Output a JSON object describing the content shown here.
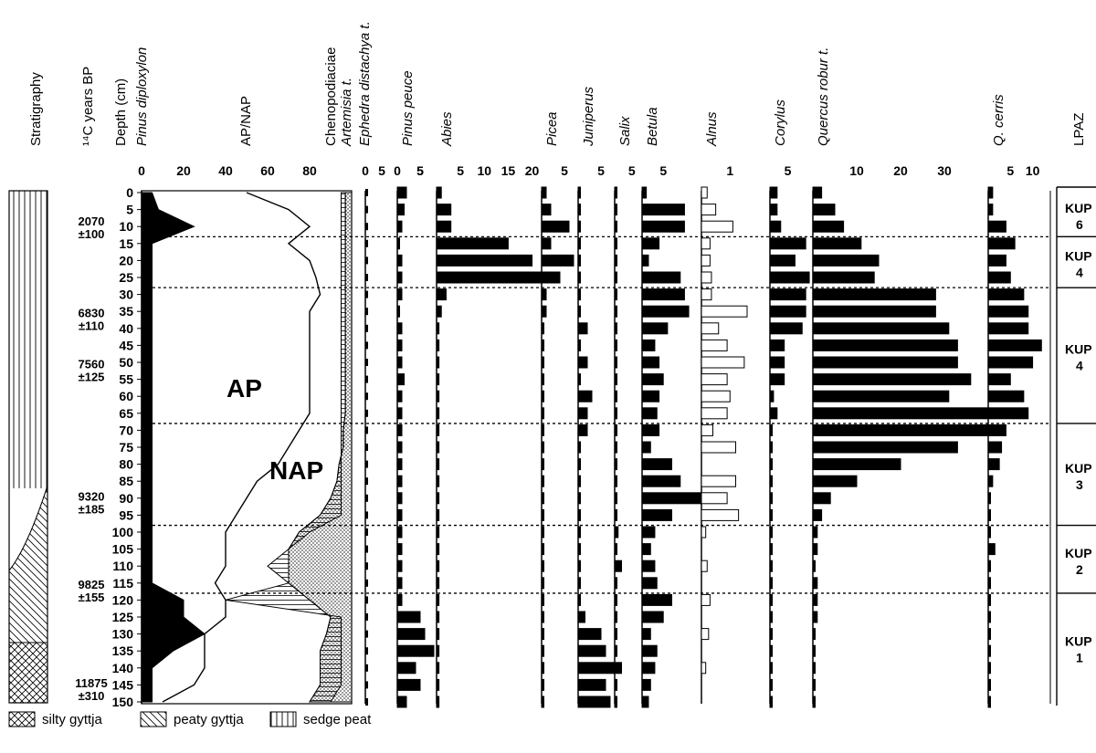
{
  "chart_data": {
    "type": "bar",
    "title": "",
    "headers": {
      "stratigraphy": "Stratigraphy",
      "c14": "¹⁴C years BP",
      "depth": "Depth (cm)",
      "pinus_diploxylon": "Pinus diploxylon",
      "ap_nap": "AP/NAP",
      "chenopodiaciae": "Chenopodiaciae",
      "artemisia": "Artemisia t.",
      "ephedra": "Ephedra distachya t.",
      "lpaz": "LPAZ"
    },
    "depths": [
      0,
      5,
      10,
      15,
      20,
      25,
      30,
      35,
      40,
      45,
      50,
      55,
      60,
      65,
      70,
      75,
      80,
      85,
      90,
      95,
      100,
      105,
      110,
      115,
      120,
      125,
      130,
      135,
      140,
      145,
      150
    ],
    "c14_dates": [
      {
        "age": "2070",
        "err": "±100",
        "depth": 10
      },
      {
        "age": "6830",
        "err": "±110",
        "depth": 37
      },
      {
        "age": "7560",
        "err": "±125",
        "depth": 52
      },
      {
        "age": "9320",
        "err": "±185",
        "depth": 91
      },
      {
        "age": "9825",
        "err": "±155",
        "depth": 117
      },
      {
        "age": "11875",
        "err": "±310",
        "depth": 146
      }
    ],
    "ap_nap_axis": {
      "ticks": [
        "0",
        "20",
        "40",
        "60",
        "80"
      ],
      "max": 100
    },
    "pinus_diploxylon": [
      5,
      8,
      25,
      5,
      5,
      5,
      5,
      5,
      5,
      5,
      5,
      5,
      5,
      5,
      5,
      5,
      5,
      5,
      5,
      5,
      5,
      5,
      5,
      5,
      20,
      20,
      30,
      15,
      5,
      5,
      5
    ],
    "ap_line": [
      50,
      70,
      80,
      70,
      80,
      83,
      85,
      80,
      80,
      80,
      80,
      80,
      80,
      80,
      75,
      70,
      65,
      55,
      50,
      45,
      40,
      40,
      40,
      35,
      40,
      40,
      30,
      30,
      30,
      25,
      10
    ],
    "chenopod_line": [
      95,
      95,
      95,
      95,
      95,
      95,
      95,
      95,
      95,
      95,
      95,
      95,
      95,
      95,
      95,
      95,
      95,
      95,
      95,
      95,
      80,
      70,
      60,
      70,
      40,
      95,
      95,
      95,
      95,
      95,
      90
    ],
    "artemisia_line": [
      97,
      97,
      97,
      97,
      97,
      97,
      97,
      97,
      97,
      97,
      97,
      97,
      97,
      97,
      96,
      96,
      94,
      93,
      90,
      85,
      75,
      70,
      70,
      70,
      80,
      90,
      88,
      85,
      85,
      85,
      80
    ],
    "ap_label": "AP",
    "nap_label": "NAP",
    "taxa": [
      {
        "name": "Pinus peuce",
        "ticks": [
          "0",
          "5",
          "5"
        ],
        "max": 8,
        "fill": "black",
        "values": [
          2,
          1.5,
          1,
          0.5,
          1,
          1,
          1,
          0.5,
          1,
          1,
          1,
          1.5,
          1,
          1,
          1,
          1,
          1,
          1,
          1,
          1,
          1,
          1,
          1,
          1,
          1,
          5,
          6,
          8,
          4,
          5,
          2
        ]
      },
      {
        "name": "Abies",
        "ticks": [
          "5",
          "10",
          "15",
          "20"
        ],
        "max": 22,
        "fill": "black",
        "values": [
          1,
          3,
          3,
          15,
          20,
          22,
          2,
          1,
          0.5,
          0.5,
          0.5,
          0.5,
          0.5,
          0.5,
          0.5,
          0.5,
          0.5,
          0.5,
          0.5,
          0.5,
          0.5,
          0.5,
          0.5,
          0.5,
          0.5,
          0.5,
          0.5,
          0.5,
          0.5,
          0.5,
          0.5
        ]
      },
      {
        "name": "Picea",
        "ticks": [
          "5"
        ],
        "max": 8,
        "fill": "black",
        "values": [
          1,
          2,
          6,
          2,
          7,
          4,
          1,
          1,
          0.5,
          0.5,
          0.5,
          0.5,
          0.5,
          0.5,
          0.5,
          0.5,
          0.5,
          0.5,
          0.5,
          0.5,
          0.5,
          0.5,
          0.5,
          0.5,
          0.5,
          0.5,
          0.5,
          0.5,
          0.5,
          0.5,
          0.5
        ]
      },
      {
        "name": "Juniperus",
        "ticks": [
          "5"
        ],
        "max": 8,
        "fill": "black",
        "values": [
          0.5,
          0.5,
          0.5,
          0.5,
          0.5,
          0.5,
          0.5,
          0.5,
          2,
          0.5,
          2,
          0.5,
          3,
          2,
          2,
          0.5,
          0.5,
          0.5,
          0.5,
          0.5,
          0.5,
          0.5,
          0.5,
          0.5,
          0.5,
          1.5,
          5,
          6,
          8,
          6,
          7
        ]
      },
      {
        "name": "Salix",
        "ticks": [
          "5"
        ],
        "max": 8,
        "fill": "black",
        "values": [
          0.5,
          0.5,
          0.5,
          0.5,
          0.5,
          0.5,
          0.5,
          0.5,
          0.5,
          0.5,
          0.5,
          0.5,
          0.5,
          0.5,
          0.5,
          0.5,
          0.5,
          0.5,
          0.5,
          0.5,
          1,
          0.5,
          2,
          0.5,
          0.5,
          0.5,
          0.5,
          0.5,
          2,
          0.5,
          0.5
        ]
      },
      {
        "name": "Betula",
        "ticks": [
          "5"
        ],
        "max": 14,
        "fill": "black",
        "values": [
          1,
          10,
          10,
          4,
          1.5,
          9,
          10,
          11,
          6,
          3,
          4,
          5,
          4,
          3.5,
          4,
          2,
          7,
          9,
          14,
          7,
          3,
          2,
          3,
          3.5,
          7,
          5,
          2,
          3.5,
          3,
          2,
          1.5
        ]
      },
      {
        "name": "Alnus",
        "ticks": [
          "1"
        ],
        "max": 2.4,
        "fill": "white",
        "values": [
          0.2,
          0.5,
          1.1,
          0.3,
          0.3,
          0.35,
          0.35,
          1.6,
          0.6,
          0.9,
          1.5,
          0.9,
          1.0,
          0.9,
          0.4,
          1.2,
          0,
          1.2,
          0.9,
          1.3,
          0.15,
          0,
          0.2,
          0,
          0.3,
          0,
          0.25,
          0,
          0.15,
          0,
          0
        ]
      },
      {
        "name": "Corylus",
        "ticks": [
          "5"
        ],
        "max": 12,
        "fill": "black",
        "values": [
          2,
          2,
          3,
          10,
          7,
          11,
          10,
          10,
          9,
          4,
          4,
          4,
          1,
          2,
          0.5,
          0.5,
          0.5,
          0.5,
          0.5,
          0.5,
          0.5,
          0.5,
          0.5,
          0.5,
          0.5,
          0.5,
          0.5,
          0.5,
          0.5,
          0.5,
          0.5
        ]
      },
      {
        "name": "Quercus robur t.",
        "ticks": [
          "10",
          "20",
          "30"
        ],
        "max": 40,
        "fill": "black",
        "values": [
          2,
          5,
          7,
          11,
          15,
          14,
          28,
          28,
          31,
          33,
          33,
          36,
          31,
          40,
          40,
          33,
          20,
          10,
          4,
          2,
          1,
          1,
          0.5,
          1,
          1,
          1,
          0.5,
          0.5,
          0.5,
          0.5,
          0.5
        ]
      },
      {
        "name": "Q. cerris",
        "ticks": [
          "5",
          "10"
        ],
        "max": 14,
        "fill": "black",
        "values": [
          1,
          1,
          4,
          6,
          4,
          5,
          8,
          9,
          9,
          12,
          10,
          5,
          8,
          9,
          4,
          3,
          2.5,
          1,
          0.5,
          0.5,
          0.5,
          1.5,
          0.5,
          0.5,
          0.5,
          0.5,
          0.5,
          0.5,
          0.5,
          0.5,
          0.5
        ]
      }
    ],
    "zones": [
      {
        "label": "KUP",
        "num": "6",
        "from": 0,
        "to": 13
      },
      {
        "label": "KUP",
        "num": "4",
        "from": 13,
        "to": 28
      },
      {
        "label": "KUP",
        "num": "4",
        "from": 28,
        "to": 68
      },
      {
        "label": "KUP",
        "num": "3",
        "from": 68,
        "to": 98
      },
      {
        "label": "KUP",
        "num": "2",
        "from": 98,
        "to": 118
      },
      {
        "label": "KUP",
        "num": "1",
        "from": 118,
        "to": 150
      }
    ],
    "legend": [
      {
        "pattern": "cross",
        "label": "silty gyttja"
      },
      {
        "pattern": "diag",
        "label": "peaty gyttja"
      },
      {
        "pattern": "vert",
        "label": "sedge peat"
      }
    ]
  }
}
